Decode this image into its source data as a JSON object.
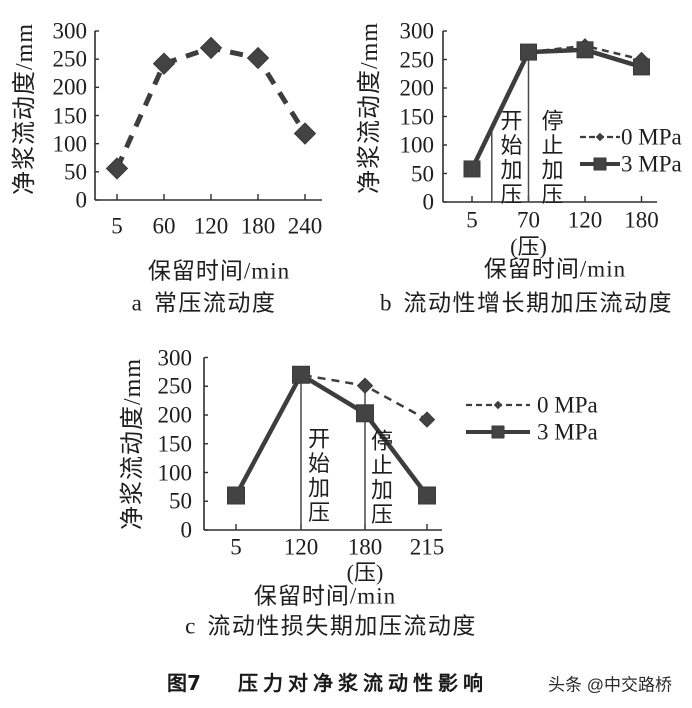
{
  "figure": {
    "number": "图7",
    "title": "压力对净浆流动性影响"
  },
  "watermark": {
    "text": "头条 @中交路桥"
  },
  "chart_data": [
    {
      "id": "a",
      "type": "line",
      "panel_label": "a",
      "title": "常压流动度",
      "xlabel": "保留时间/min",
      "ylabel": "净浆流动度/mm",
      "ylim": [
        0,
        300
      ],
      "yticks": [
        0,
        50,
        100,
        150,
        200,
        250,
        300
      ],
      "categories": [
        "5",
        "60",
        "120",
        "180",
        "240"
      ],
      "category_sublabels": [
        "",
        "",
        "",
        "",
        ""
      ],
      "grid": false,
      "legend": null,
      "series": [
        {
          "name": "常压",
          "line": "dashed",
          "marker": "diamond",
          "values": [
            56,
            242,
            270,
            252,
            118
          ]
        }
      ],
      "annotations": []
    },
    {
      "id": "b",
      "type": "line",
      "panel_label": "b",
      "title": "流动性增长期加压流动度",
      "xlabel": "保留时间/min",
      "ylabel": "净浆流动度/mm",
      "ylim": [
        0,
        300
      ],
      "yticks": [
        0,
        50,
        100,
        150,
        200,
        250,
        300
      ],
      "categories": [
        "5",
        "70",
        "120",
        "180"
      ],
      "category_sublabels": [
        "",
        "(压)",
        "",
        ""
      ],
      "grid": false,
      "legend": {
        "position": "right"
      },
      "series": [
        {
          "name": "0 MPa",
          "line": "dashed",
          "marker": "diamond",
          "values": [
            58,
            263,
            274,
            250
          ]
        },
        {
          "name": "3 MPa",
          "line": "solid",
          "marker": "square",
          "values": [
            58,
            263,
            267,
            237
          ]
        }
      ],
      "annotations": [
        {
          "text": "开始加压",
          "x_index": 0.35
        },
        {
          "text": "停止加压",
          "x_index": 1
        }
      ]
    },
    {
      "id": "c",
      "type": "line",
      "panel_label": "c",
      "title": "流动性损失期加压流动度",
      "xlabel": "保留时间/min",
      "ylabel": "净浆流动度/mm",
      "ylim": [
        0,
        300
      ],
      "yticks": [
        0,
        50,
        100,
        150,
        200,
        250,
        300
      ],
      "categories": [
        "5",
        "120",
        "180",
        "215"
      ],
      "category_sublabels": [
        "",
        "",
        "(压)",
        ""
      ],
      "grid": false,
      "legend": {
        "position": "right"
      },
      "series": [
        {
          "name": "0 MPa",
          "line": "dashed",
          "marker": "diamond",
          "values": [
            60,
            270,
            251,
            192
          ]
        },
        {
          "name": "3 MPa",
          "line": "solid",
          "marker": "square",
          "values": [
            60,
            270,
            203,
            60
          ]
        }
      ],
      "annotations": [
        {
          "text": "开始加压",
          "x_index": 1
        },
        {
          "text": "停止加压",
          "x_index": 2
        }
      ]
    }
  ]
}
